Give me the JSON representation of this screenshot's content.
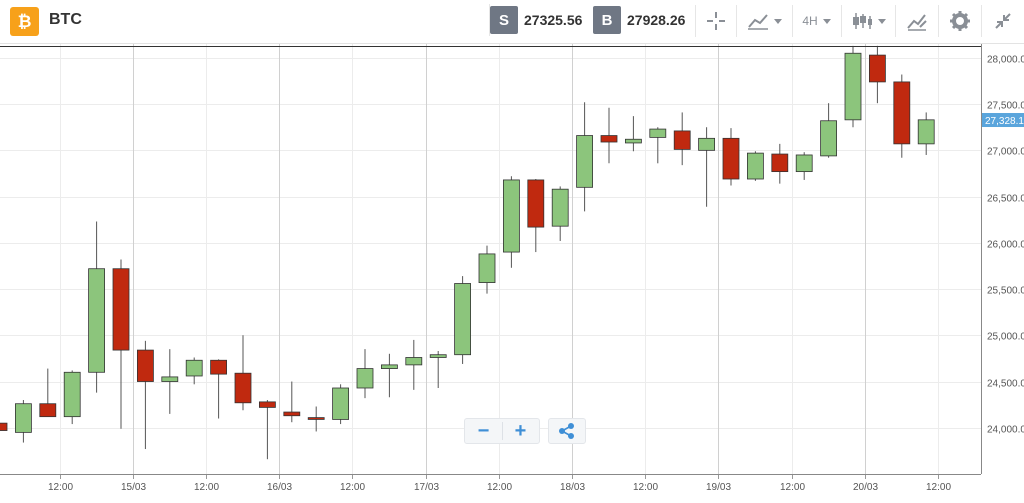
{
  "instrument": {
    "symbol": "BTC",
    "icon": "bitcoin-icon",
    "icon_glyph": "₿",
    "icon_color": "#f7a11a"
  },
  "prices": {
    "sell": {
      "label": "S",
      "value": "27325.56"
    },
    "buy": {
      "label": "B",
      "value": "27928.26"
    }
  },
  "toolbar": {
    "crosshair_icon": "crosshair-icon",
    "chart_type_icon": "line-chart-icon",
    "timeframe": "4H",
    "indicators_icon": "candlestick-indicators-icon",
    "draw_icon": "draw-tools-icon",
    "settings_icon": "gear-icon",
    "collapse_icon": "collapse-icon"
  },
  "controls": {
    "zoom_out": "−",
    "zoom_in": "+",
    "share_icon": "share-icon"
  },
  "colors": {
    "up": "#8cc57c",
    "down": "#c0290f",
    "wick": "#555555",
    "price_label_bg": "#5aa5dc",
    "grid": "#ececec"
  },
  "chart_data": {
    "type": "candlestick",
    "ylim": [
      23500,
      28150
    ],
    "y_ticks": [
      "24,000.0",
      "24,500.0",
      "25,000.0",
      "25,500.0",
      "26,000.0",
      "26,500.0",
      "27,000.0",
      "27,500.0",
      "28,000.0"
    ],
    "y_tick_values": [
      24000,
      24500,
      25000,
      25500,
      26000,
      26500,
      27000,
      27500,
      28000
    ],
    "x_ticks": [
      "12:00",
      "15/03",
      "12:00",
      "16/03",
      "12:00",
      "17/03",
      "12:00",
      "18/03",
      "12:00",
      "19/03",
      "12:00",
      "20/03",
      "12:00"
    ],
    "current_price_label": "27,328.17",
    "current_price": 27328,
    "last_line_price": 28125,
    "candles": [
      {
        "o": 24050,
        "h": 24080,
        "l": 23940,
        "c": 23970
      },
      {
        "o": 23950,
        "h": 24300,
        "l": 23840,
        "c": 24260
      },
      {
        "o": 24260,
        "h": 24640,
        "l": 24120,
        "c": 24120
      },
      {
        "o": 24120,
        "h": 24620,
        "l": 24040,
        "c": 24600
      },
      {
        "o": 24600,
        "h": 26230,
        "l": 24380,
        "c": 25720
      },
      {
        "o": 25720,
        "h": 25820,
        "l": 23990,
        "c": 24840
      },
      {
        "o": 24840,
        "h": 24940,
        "l": 23770,
        "c": 24500
      },
      {
        "o": 24500,
        "h": 24850,
        "l": 24150,
        "c": 24550
      },
      {
        "o": 24560,
        "h": 24760,
        "l": 24470,
        "c": 24730
      },
      {
        "o": 24730,
        "h": 24740,
        "l": 24100,
        "c": 24580
      },
      {
        "o": 24590,
        "h": 25000,
        "l": 24190,
        "c": 24270
      },
      {
        "o": 24280,
        "h": 24300,
        "l": 23660,
        "c": 24220
      },
      {
        "o": 24170,
        "h": 24500,
        "l": 24060,
        "c": 24130
      },
      {
        "o": 24110,
        "h": 24230,
        "l": 23960,
        "c": 24090
      },
      {
        "o": 24090,
        "h": 24470,
        "l": 24040,
        "c": 24430
      },
      {
        "o": 24430,
        "h": 24850,
        "l": 24320,
        "c": 24640
      },
      {
        "o": 24640,
        "h": 24800,
        "l": 24330,
        "c": 24680
      },
      {
        "o": 24680,
        "h": 24950,
        "l": 24410,
        "c": 24760
      },
      {
        "o": 24760,
        "h": 24830,
        "l": 24430,
        "c": 24790
      },
      {
        "o": 24790,
        "h": 25640,
        "l": 24690,
        "c": 25560
      },
      {
        "o": 25570,
        "h": 25970,
        "l": 25450,
        "c": 25880
      },
      {
        "o": 25900,
        "h": 26720,
        "l": 25730,
        "c": 26680
      },
      {
        "o": 26680,
        "h": 26690,
        "l": 25900,
        "c": 26170
      },
      {
        "o": 26180,
        "h": 26610,
        "l": 26020,
        "c": 26580
      },
      {
        "o": 26600,
        "h": 27520,
        "l": 26340,
        "c": 27160
      },
      {
        "o": 27160,
        "h": 27460,
        "l": 26860,
        "c": 27090
      },
      {
        "o": 27080,
        "h": 27370,
        "l": 26990,
        "c": 27120
      },
      {
        "o": 27140,
        "h": 27250,
        "l": 26860,
        "c": 27230
      },
      {
        "o": 27210,
        "h": 27410,
        "l": 26840,
        "c": 27010
      },
      {
        "o": 27000,
        "h": 27250,
        "l": 26390,
        "c": 27130
      },
      {
        "o": 27130,
        "h": 27240,
        "l": 26620,
        "c": 26690
      },
      {
        "o": 26690,
        "h": 26990,
        "l": 26670,
        "c": 26970
      },
      {
        "o": 26960,
        "h": 27070,
        "l": 26640,
        "c": 26770
      },
      {
        "o": 26770,
        "h": 26980,
        "l": 26680,
        "c": 26950
      },
      {
        "o": 26940,
        "h": 27510,
        "l": 26920,
        "c": 27320
      },
      {
        "o": 27330,
        "h": 28130,
        "l": 27250,
        "c": 28050
      },
      {
        "o": 28030,
        "h": 28130,
        "l": 27510,
        "c": 27740
      },
      {
        "o": 27740,
        "h": 27820,
        "l": 26920,
        "c": 27070
      },
      {
        "o": 27070,
        "h": 27410,
        "l": 26950,
        "c": 27330
      }
    ]
  }
}
